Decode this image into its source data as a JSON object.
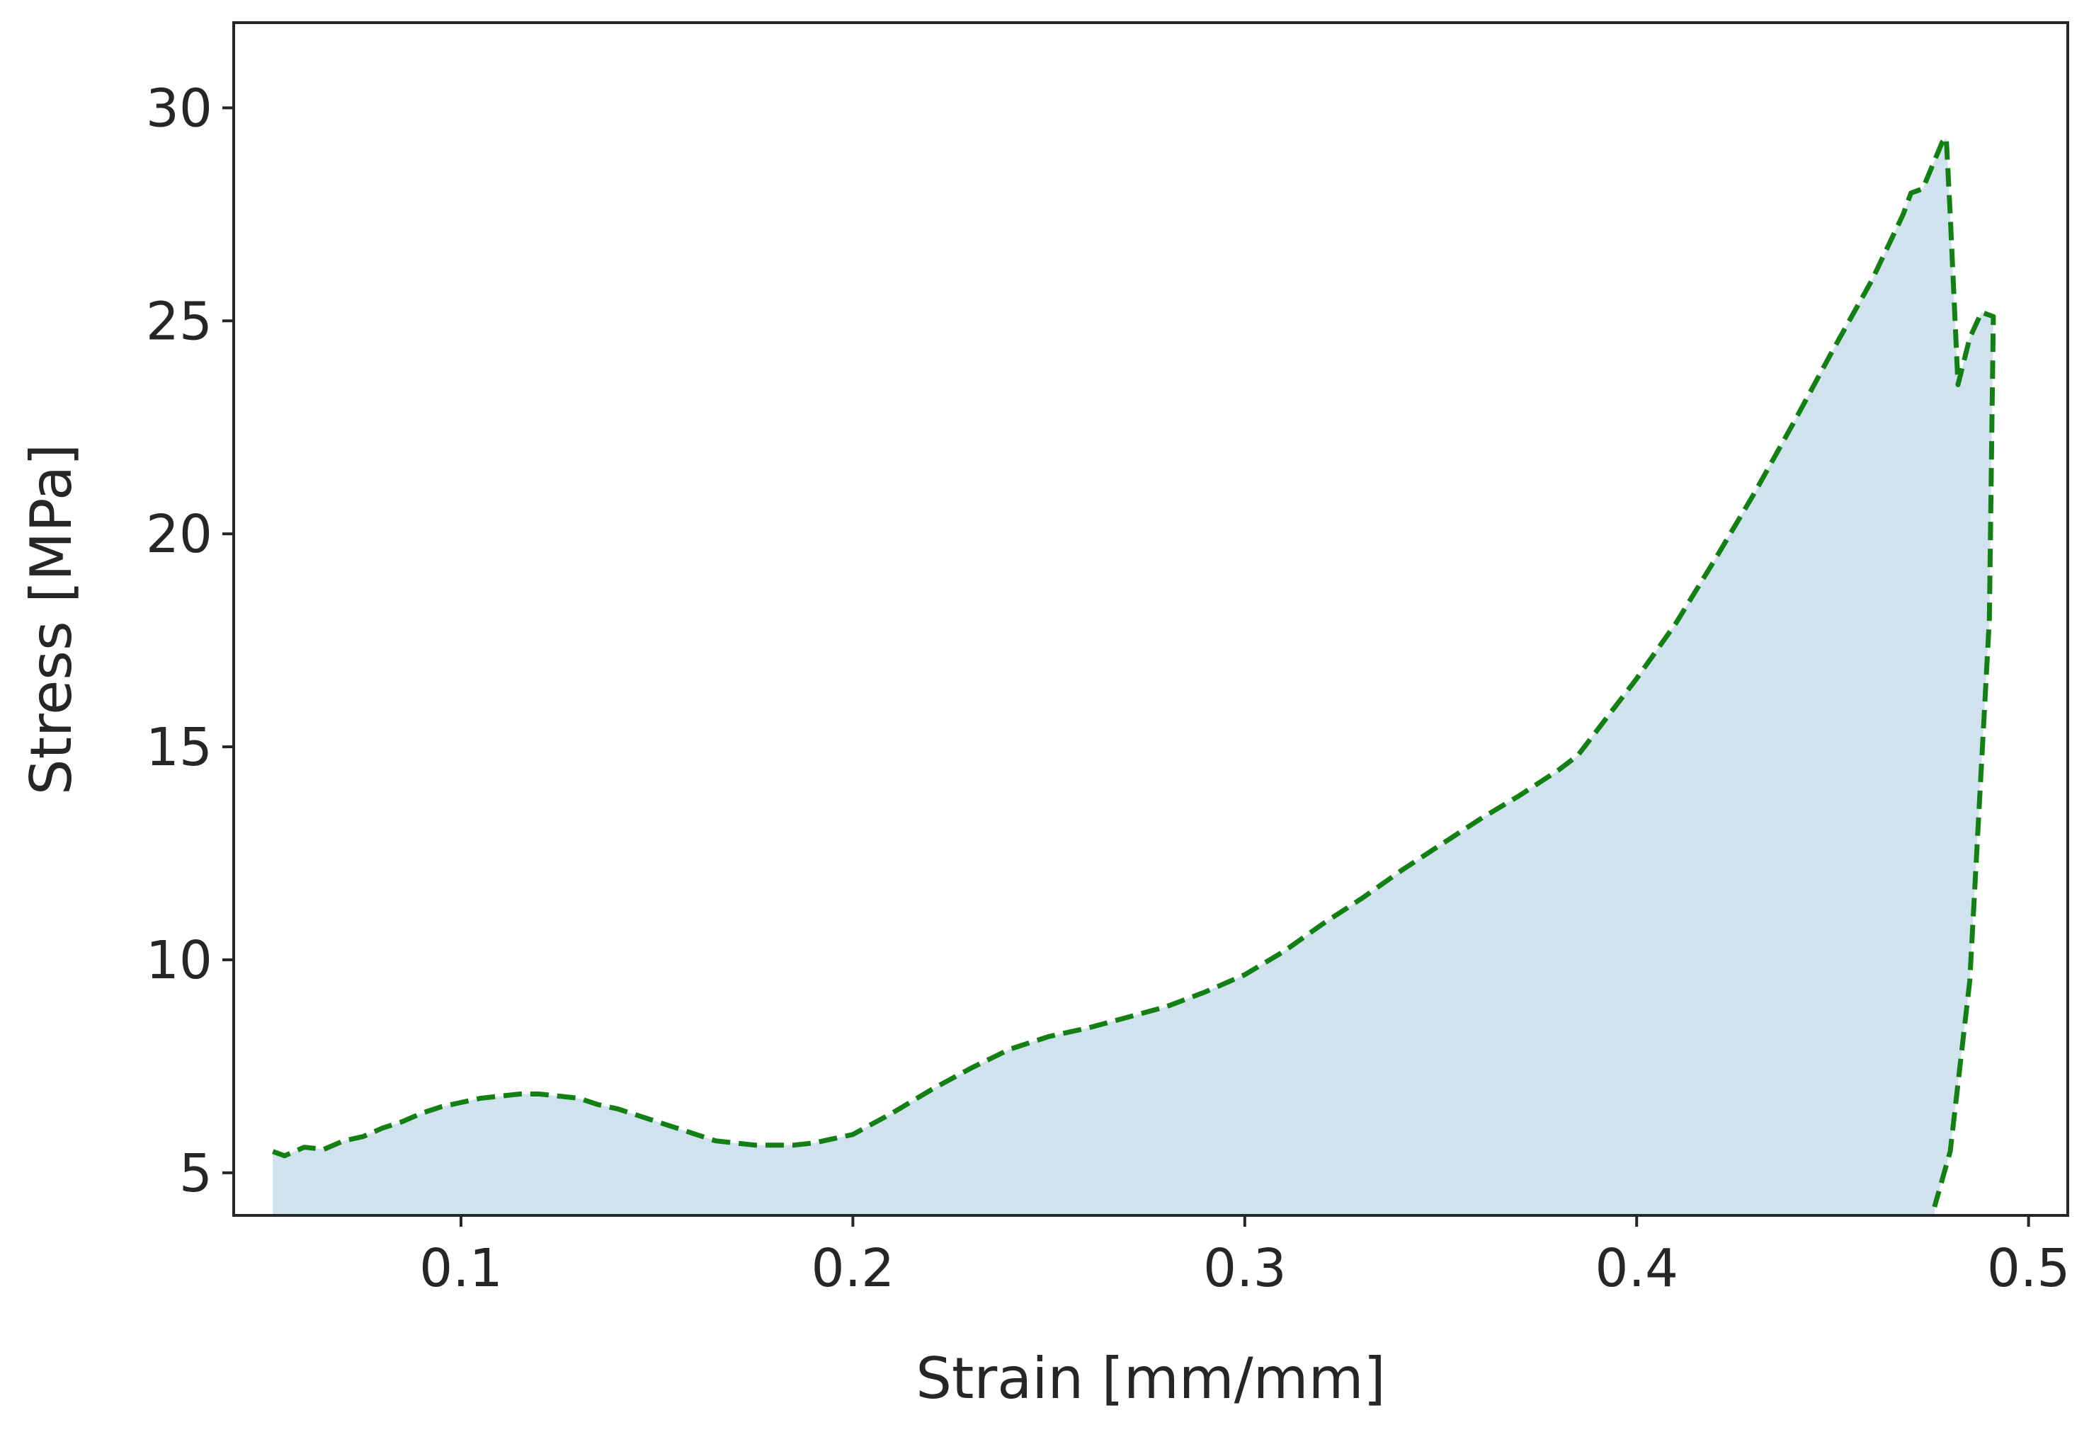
{
  "chart_data": {
    "type": "area",
    "title": "",
    "xlabel": "Strain [mm/mm]",
    "ylabel": "Stress [MPa]",
    "xlim": [
      0.042,
      0.51
    ],
    "ylim": [
      4.0,
      32.0
    ],
    "grid": false,
    "legend": "none",
    "xticks": [
      0.1,
      0.2,
      0.3,
      0.4,
      0.5
    ],
    "xtick_labels": [
      "0.1",
      "0.2",
      "0.3",
      "0.4",
      "0.5"
    ],
    "yticks": [
      5,
      10,
      15,
      20,
      25,
      30
    ],
    "ytick_labels": [
      "5",
      "10",
      "15",
      "20",
      "25",
      "30"
    ],
    "series": [
      {
        "line_style": "dashed",
        "line_color": "#138013",
        "fill_color": "#d1e2ef",
        "x": [
          0.052,
          0.055,
          0.06,
          0.065,
          0.07,
          0.075,
          0.08,
          0.085,
          0.09,
          0.095,
          0.1,
          0.105,
          0.11,
          0.115,
          0.12,
          0.125,
          0.13,
          0.135,
          0.14,
          0.145,
          0.15,
          0.155,
          0.16,
          0.165,
          0.17,
          0.175,
          0.18,
          0.185,
          0.19,
          0.195,
          0.2,
          0.21,
          0.22,
          0.23,
          0.24,
          0.25,
          0.26,
          0.27,
          0.28,
          0.29,
          0.3,
          0.31,
          0.32,
          0.33,
          0.34,
          0.35,
          0.36,
          0.37,
          0.38,
          0.385,
          0.39,
          0.4,
          0.41,
          0.42,
          0.43,
          0.44,
          0.45,
          0.46,
          0.468,
          0.47,
          0.473,
          0.478,
          0.479,
          0.48,
          0.482,
          0.485,
          0.488,
          0.491,
          0.49,
          0.485,
          0.48,
          0.476
        ],
        "y": [
          5.5,
          5.4,
          5.6,
          5.55,
          5.75,
          5.85,
          6.05,
          6.2,
          6.4,
          6.55,
          6.65,
          6.75,
          6.8,
          6.85,
          6.85,
          6.8,
          6.75,
          6.6,
          6.5,
          6.35,
          6.2,
          6.05,
          5.9,
          5.75,
          5.7,
          5.65,
          5.65,
          5.65,
          5.7,
          5.8,
          5.9,
          6.4,
          6.95,
          7.45,
          7.9,
          8.2,
          8.4,
          8.65,
          8.9,
          9.25,
          9.65,
          10.2,
          10.85,
          11.45,
          12.1,
          12.7,
          13.3,
          13.85,
          14.45,
          14.8,
          15.4,
          16.6,
          17.9,
          19.4,
          20.95,
          22.6,
          24.3,
          25.95,
          27.5,
          28.0,
          28.1,
          29.2,
          29.3,
          27.5,
          23.5,
          24.6,
          25.2,
          25.1,
          18.0,
          9.5,
          5.5,
          4.2
        ]
      }
    ]
  }
}
